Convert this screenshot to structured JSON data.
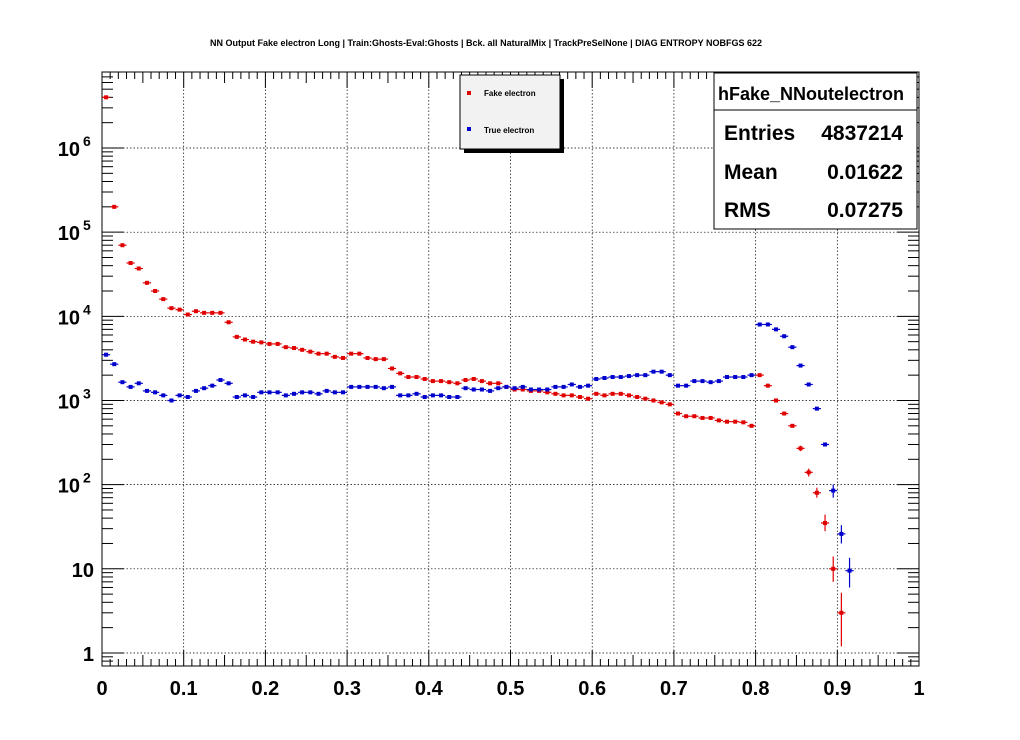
{
  "chart_data": {
    "type": "scatter",
    "title": "NN Output Fake electron Long | Train:Ghosts-Eval:Ghosts | Bck. all NaturalMix | TrackPreSelNone | DIAG ENTROPY NOBFGS 622",
    "xlabel": "",
    "ylabel": "",
    "xlim": [
      0,
      1
    ],
    "ylim": [
      0.7,
      8000000
    ],
    "yscale": "log",
    "grid": true,
    "legend_position": "top-center",
    "x_ticks": [
      "0",
      "0.1",
      "0.2",
      "0.3",
      "0.4",
      "0.5",
      "0.6",
      "0.7",
      "0.8",
      "0.9",
      "1"
    ],
    "y_ticks": [
      {
        "value": 1,
        "label": "1"
      },
      {
        "value": 10,
        "label": "10"
      },
      {
        "value": 100,
        "label": "10",
        "exp": "2"
      },
      {
        "value": 1000,
        "label": "10",
        "exp": "3"
      },
      {
        "value": 10000,
        "label": "10",
        "exp": "4"
      },
      {
        "value": 100000,
        "label": "10",
        "exp": "5"
      },
      {
        "value": 1000000,
        "label": "10",
        "exp": "6"
      }
    ],
    "bin_width": 0.01,
    "series": [
      {
        "name": "Fake electron",
        "color": "#e00000",
        "x": [
          0.005,
          0.015,
          0.025,
          0.035,
          0.045,
          0.055,
          0.065,
          0.075,
          0.085,
          0.095,
          0.105,
          0.115,
          0.125,
          0.135,
          0.145,
          0.155,
          0.165,
          0.175,
          0.185,
          0.195,
          0.205,
          0.215,
          0.225,
          0.235,
          0.245,
          0.255,
          0.265,
          0.275,
          0.285,
          0.295,
          0.305,
          0.315,
          0.325,
          0.335,
          0.345,
          0.355,
          0.365,
          0.375,
          0.385,
          0.395,
          0.405,
          0.415,
          0.425,
          0.435,
          0.445,
          0.455,
          0.465,
          0.475,
          0.485,
          0.495,
          0.505,
          0.515,
          0.525,
          0.535,
          0.545,
          0.555,
          0.565,
          0.575,
          0.585,
          0.595,
          0.605,
          0.615,
          0.625,
          0.635,
          0.645,
          0.655,
          0.665,
          0.675,
          0.685,
          0.695,
          0.705,
          0.715,
          0.725,
          0.735,
          0.745,
          0.755,
          0.765,
          0.775,
          0.785,
          0.795,
          0.805,
          0.815,
          0.825,
          0.835,
          0.845,
          0.855,
          0.865,
          0.875,
          0.885,
          0.895,
          0.905
        ],
        "y": [
          4000000,
          200000,
          70000,
          43000,
          37000,
          25000,
          20000,
          16000,
          12500,
          12000,
          10500,
          11500,
          11000,
          11000,
          11000,
          8500,
          5700,
          5300,
          5000,
          4900,
          4700,
          4700,
          4300,
          4200,
          4000,
          3800,
          3600,
          3600,
          3300,
          3200,
          3600,
          3600,
          3200,
          3100,
          3100,
          2400,
          2100,
          1900,
          1900,
          1800,
          1700,
          1700,
          1650,
          1600,
          1750,
          1800,
          1700,
          1600,
          1600,
          1450,
          1350,
          1350,
          1300,
          1300,
          1250,
          1200,
          1150,
          1150,
          1100,
          1050,
          1200,
          1150,
          1200,
          1200,
          1150,
          1100,
          1050,
          1000,
          950,
          900,
          700,
          650,
          650,
          620,
          620,
          580,
          560,
          560,
          550,
          500,
          2000,
          1500,
          1000,
          700,
          500,
          270,
          140,
          80,
          35,
          10,
          3
        ],
        "yerr_low": [
          0,
          0,
          0,
          0,
          0,
          0,
          0,
          0,
          0,
          0,
          0,
          0,
          0,
          0,
          0,
          0,
          0,
          0,
          0,
          0,
          0,
          0,
          0,
          0,
          0,
          0,
          0,
          0,
          0,
          0,
          0,
          0,
          0,
          0,
          0,
          0,
          0,
          0,
          0,
          0,
          0,
          0,
          0,
          0,
          0,
          0,
          0,
          0,
          0,
          0,
          0,
          0,
          0,
          0,
          0,
          0,
          0,
          0,
          0,
          0,
          0,
          0,
          0,
          0,
          0,
          0,
          0,
          0,
          0,
          0,
          0,
          0,
          0,
          0,
          0,
          0,
          0,
          0,
          0,
          0,
          0,
          0,
          0,
          0,
          0,
          20,
          15,
          10,
          7,
          3,
          1.8
        ],
        "yerr_high": [
          0,
          0,
          0,
          0,
          0,
          0,
          0,
          0,
          0,
          0,
          0,
          0,
          0,
          0,
          0,
          0,
          0,
          0,
          0,
          0,
          0,
          0,
          0,
          0,
          0,
          0,
          0,
          0,
          0,
          0,
          0,
          0,
          0,
          0,
          0,
          0,
          0,
          0,
          0,
          0,
          0,
          0,
          0,
          0,
          0,
          0,
          0,
          0,
          0,
          0,
          0,
          0,
          0,
          0,
          0,
          0,
          0,
          0,
          0,
          0,
          0,
          0,
          0,
          0,
          0,
          0,
          0,
          0,
          0,
          0,
          0,
          0,
          0,
          0,
          0,
          0,
          0,
          0,
          0,
          0,
          0,
          0,
          0,
          0,
          0,
          20,
          15,
          12,
          9,
          4,
          2.2
        ]
      },
      {
        "name": "True electron",
        "color": "#0000cc",
        "x": [
          0.005,
          0.015,
          0.025,
          0.035,
          0.045,
          0.055,
          0.065,
          0.075,
          0.085,
          0.095,
          0.105,
          0.115,
          0.125,
          0.135,
          0.145,
          0.155,
          0.165,
          0.175,
          0.185,
          0.195,
          0.205,
          0.215,
          0.225,
          0.235,
          0.245,
          0.255,
          0.265,
          0.275,
          0.285,
          0.295,
          0.305,
          0.315,
          0.325,
          0.335,
          0.345,
          0.355,
          0.365,
          0.375,
          0.385,
          0.395,
          0.405,
          0.415,
          0.425,
          0.435,
          0.445,
          0.455,
          0.465,
          0.475,
          0.485,
          0.495,
          0.505,
          0.515,
          0.525,
          0.535,
          0.545,
          0.555,
          0.565,
          0.575,
          0.585,
          0.595,
          0.605,
          0.615,
          0.625,
          0.635,
          0.645,
          0.655,
          0.665,
          0.675,
          0.685,
          0.695,
          0.705,
          0.715,
          0.725,
          0.735,
          0.745,
          0.755,
          0.765,
          0.775,
          0.785,
          0.795,
          0.805,
          0.815,
          0.825,
          0.835,
          0.845,
          0.855,
          0.865,
          0.875,
          0.885,
          0.895,
          0.905,
          0.915,
          0.925
        ],
        "y": [
          3500,
          2700,
          1650,
          1450,
          1600,
          1300,
          1250,
          1150,
          1000,
          1150,
          1100,
          1300,
          1400,
          1500,
          1750,
          1600,
          1100,
          1150,
          1100,
          1250,
          1250,
          1250,
          1150,
          1200,
          1250,
          1250,
          1200,
          1300,
          1250,
          1250,
          1450,
          1450,
          1450,
          1450,
          1400,
          1450,
          1150,
          1150,
          1200,
          1100,
          1150,
          1150,
          1100,
          1100,
          1400,
          1350,
          1350,
          1300,
          1400,
          1450,
          1400,
          1450,
          1350,
          1350,
          1350,
          1450,
          1450,
          1550,
          1450,
          1500,
          1800,
          1850,
          1900,
          1900,
          1950,
          2000,
          2000,
          2200,
          2200,
          2000,
          1500,
          1500,
          1700,
          1700,
          1650,
          1700,
          1900,
          1900,
          1900,
          2000,
          8000,
          8000,
          7000,
          5800,
          4300,
          2600,
          1550,
          800,
          300,
          85,
          26,
          9.5,
          0
        ],
        "yerr_low": [
          0,
          0,
          0,
          0,
          0,
          0,
          0,
          0,
          0,
          0,
          0,
          0,
          0,
          0,
          0,
          0,
          0,
          0,
          0,
          0,
          0,
          0,
          0,
          0,
          0,
          0,
          0,
          0,
          0,
          0,
          0,
          0,
          0,
          0,
          0,
          0,
          0,
          0,
          0,
          0,
          0,
          0,
          0,
          0,
          0,
          0,
          0,
          0,
          0,
          0,
          0,
          0,
          0,
          0,
          0,
          0,
          0,
          0,
          0,
          0,
          0,
          0,
          0,
          0,
          0,
          0,
          0,
          0,
          0,
          0,
          0,
          0,
          0,
          0,
          0,
          0,
          0,
          0,
          0,
          0,
          0,
          0,
          0,
          0,
          0,
          0,
          0,
          0,
          0,
          15,
          6,
          3.5,
          0
        ],
        "yerr_high": [
          0,
          0,
          0,
          0,
          0,
          0,
          0,
          0,
          0,
          0,
          0,
          0,
          0,
          0,
          0,
          0,
          0,
          0,
          0,
          0,
          0,
          0,
          0,
          0,
          0,
          0,
          0,
          0,
          0,
          0,
          0,
          0,
          0,
          0,
          0,
          0,
          0,
          0,
          0,
          0,
          0,
          0,
          0,
          0,
          0,
          0,
          0,
          0,
          0,
          0,
          0,
          0,
          0,
          0,
          0,
          0,
          0,
          0,
          0,
          0,
          0,
          0,
          0,
          0,
          0,
          0,
          0,
          0,
          0,
          0,
          0,
          0,
          0,
          0,
          0,
          0,
          0,
          0,
          0,
          0,
          0,
          0,
          0,
          0,
          0,
          0,
          0,
          0,
          0,
          15,
          7,
          4,
          0
        ]
      }
    ],
    "stats": {
      "title": "hFake_NNoutelectron",
      "rows": [
        {
          "label": "Entries",
          "value": "4837214"
        },
        {
          "label": "Mean",
          "value": "0.01622"
        },
        {
          "label": "RMS",
          "value": "0.07275"
        }
      ]
    }
  }
}
